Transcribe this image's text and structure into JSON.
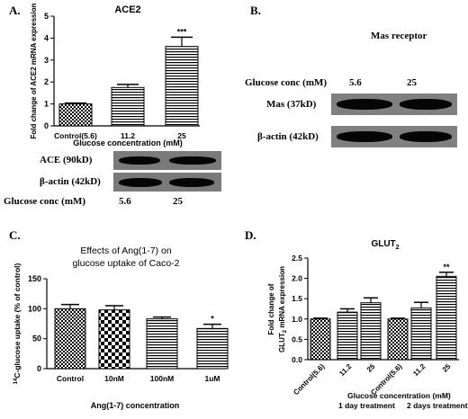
{
  "panels": {
    "a": "A.",
    "b": "B.",
    "c": "C.",
    "d": "D."
  },
  "chart_data": [
    {
      "type": "bar",
      "title": "ACE2",
      "ylabel": "Fold change of ACE2 mRNA expression",
      "xlabel": "Glucose concentration (mM)",
      "categories": [
        "Control(5.6)",
        "11.2",
        "25"
      ],
      "values": [
        1.0,
        1.75,
        3.62
      ],
      "errors": [
        0.04,
        0.14,
        0.42
      ],
      "ylim": [
        0,
        5
      ],
      "yticks": [
        "0",
        "1",
        "2",
        "3",
        "4",
        "5"
      ],
      "significance": [
        "",
        "",
        "***"
      ],
      "patterns": [
        "dots",
        "hlines",
        "hlines"
      ]
    },
    {
      "type": "bar",
      "title": "Effects of Ang(1-7) on glucose uptake of Caco-2",
      "ylabel_main": "C-glucose uptake (% of control)",
      "ylabel_sup": "14",
      "xlabel": "Ang(1-7) concentration",
      "categories": [
        "Control",
        "10nM",
        "100nM",
        "1uM"
      ],
      "values": [
        100,
        98,
        83,
        67
      ],
      "errors": [
        7,
        7,
        3,
        7
      ],
      "ylim": [
        0,
        150
      ],
      "yticks": [
        "0",
        "50",
        "100",
        "150"
      ],
      "significance": [
        "",
        "",
        "",
        "*"
      ],
      "patterns": [
        "dots",
        "checker",
        "hlines",
        "hlines"
      ]
    },
    {
      "type": "bar",
      "title_main": "GLUT",
      "title_sub": "2",
      "ylabel_line1": "Fold change of",
      "ylabel_line2_main": "GLUT",
      "ylabel_line2_sub": "2",
      "ylabel_line2_rest": " mRNA expression",
      "xlabel": "Glucose concentration (mM)",
      "group_labels": [
        "1 day treatment",
        "2 days treatment"
      ],
      "categories": [
        "Control(5.6)",
        "11.2",
        "25",
        "Control(5.6)",
        "11.2",
        "25"
      ],
      "values": [
        1.0,
        1.17,
        1.4,
        1.0,
        1.27,
        2.05
      ],
      "errors": [
        0.02,
        0.08,
        0.12,
        0.02,
        0.14,
        0.1
      ],
      "ylim": [
        0,
        2.5
      ],
      "yticks": [
        "0.0",
        "0.5",
        "1.0",
        "1.5",
        "2.0",
        "2.5"
      ],
      "significance": [
        "",
        "",
        "",
        "",
        "",
        "**"
      ],
      "patterns": [
        "dots",
        "hlines",
        "hlines",
        "dots",
        "hlines",
        "hlines"
      ]
    }
  ],
  "blot_a": {
    "rows": [
      "ACE (90kD)",
      "β-actin (42kD)"
    ],
    "glucose_label": "Glucose conc (mM)",
    "conc": [
      "5.6",
      "25"
    ]
  },
  "blot_b": {
    "title": "Mas receptor",
    "glucose_label": "Glucose conc (mM)",
    "conc": [
      "5.6",
      "25"
    ],
    "rows": [
      "Mas (37kD)",
      "β-actin (42kD)"
    ]
  }
}
